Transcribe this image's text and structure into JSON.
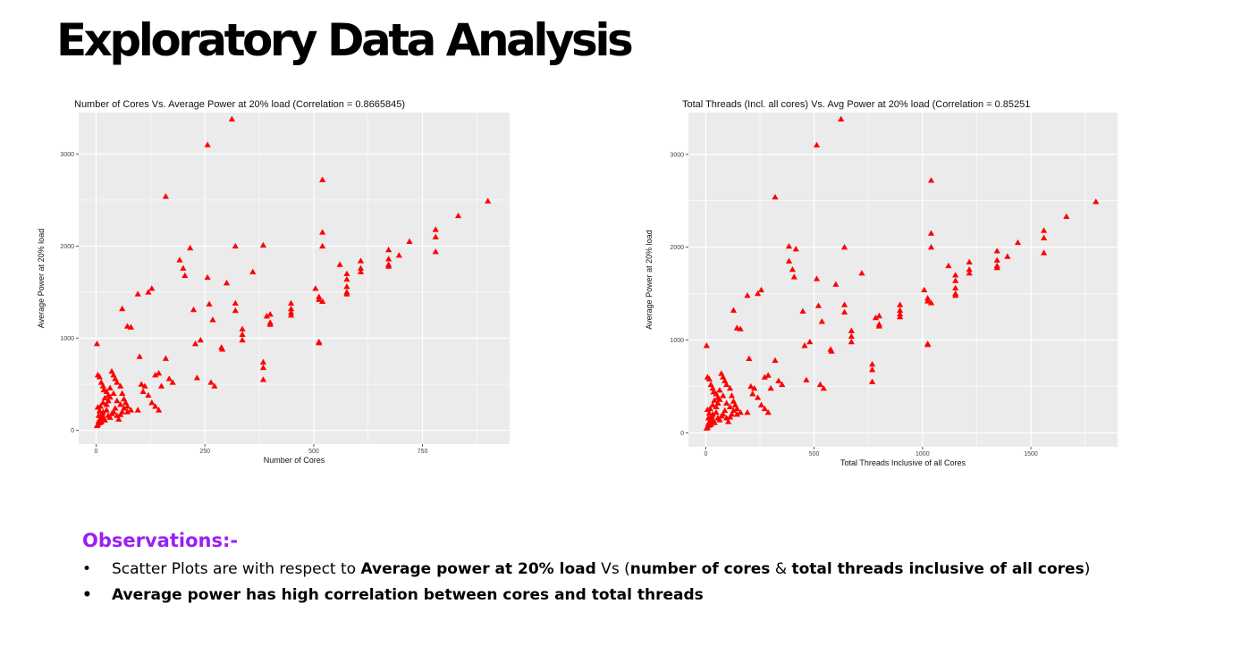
{
  "slide": {
    "title": "Exploratory Data Analysis"
  },
  "observations": {
    "heading": "Observations:-",
    "bullet_symbol": "•",
    "item1": {
      "t1": "Scatter Plots are with respect to ",
      "b1": "Average power at 20% load",
      "t2": " Vs (",
      "b2": "number of cores",
      "t3": " & ",
      "b3": "total threads inclusive of all cores",
      "t4": ")"
    },
    "item2": "Average power has high correlation between cores and total threads"
  },
  "colors": {
    "panel_background": "#ebebeb",
    "gridline": "#ffffff",
    "marker": "#ff0000",
    "observations_heading": "#9a1ff5"
  },
  "chart_data": [
    {
      "type": "scatter",
      "marker": "triangle",
      "title": "Number of Cores Vs. Average Power at 20% load (Correlation = 0.8665845)",
      "xlabel": "Number of Cores",
      "ylabel": "Average Power at 20% load",
      "xlim": [
        -40,
        950
      ],
      "ylim": [
        -150,
        3450
      ],
      "xticks": [
        0,
        250,
        500,
        750
      ],
      "xtick_labels": [
        "0",
        "250",
        "500",
        "750"
      ],
      "yticks": [
        0,
        1000,
        2000,
        3000
      ],
      "ytick_labels": [
        "0",
        "1000",
        "2000",
        "3000"
      ],
      "grid": true,
      "points": [
        [
          2,
          940
        ],
        [
          4,
          600
        ],
        [
          8,
          580
        ],
        [
          12,
          520
        ],
        [
          16,
          480
        ],
        [
          18,
          440
        ],
        [
          24,
          420
        ],
        [
          28,
          380
        ],
        [
          32,
          460
        ],
        [
          36,
          640
        ],
        [
          40,
          600
        ],
        [
          44,
          560
        ],
        [
          48,
          520
        ],
        [
          56,
          480
        ],
        [
          60,
          400
        ],
        [
          64,
          340
        ],
        [
          68,
          300
        ],
        [
          72,
          260
        ],
        [
          80,
          220
        ],
        [
          2,
          50
        ],
        [
          4,
          60
        ],
        [
          6,
          100
        ],
        [
          8,
          80
        ],
        [
          10,
          120
        ],
        [
          12,
          150
        ],
        [
          14,
          180
        ],
        [
          16,
          200
        ],
        [
          18,
          130
        ],
        [
          20,
          110
        ],
        [
          24,
          220
        ],
        [
          28,
          160
        ],
        [
          32,
          140
        ],
        [
          36,
          180
        ],
        [
          40,
          200
        ],
        [
          44,
          240
        ],
        [
          48,
          160
        ],
        [
          52,
          120
        ],
        [
          56,
          170
        ],
        [
          60,
          200
        ],
        [
          4,
          250
        ],
        [
          6,
          160
        ],
        [
          8,
          210
        ],
        [
          10,
          260
        ],
        [
          12,
          90
        ],
        [
          16,
          300
        ],
        [
          20,
          350
        ],
        [
          24,
          280
        ],
        [
          28,
          320
        ],
        [
          32,
          360
        ],
        [
          40,
          400
        ],
        [
          48,
          320
        ],
        [
          56,
          280
        ],
        [
          64,
          240
        ],
        [
          72,
          200
        ],
        [
          96,
          220
        ],
        [
          60,
          1320
        ],
        [
          72,
          1130
        ],
        [
          80,
          1120
        ],
        [
          96,
          1480
        ],
        [
          104,
          500
        ],
        [
          112,
          480
        ],
        [
          120,
          1500
        ],
        [
          128,
          1540
        ],
        [
          136,
          600
        ],
        [
          144,
          620
        ],
        [
          150,
          480
        ],
        [
          160,
          780
        ],
        [
          168,
          560
        ],
        [
          176,
          520
        ],
        [
          100,
          800
        ],
        [
          108,
          420
        ],
        [
          120,
          380
        ],
        [
          128,
          300
        ],
        [
          136,
          260
        ],
        [
          144,
          220
        ],
        [
          160,
          2540
        ],
        [
          192,
          1850
        ],
        [
          200,
          1760
        ],
        [
          204,
          1680
        ],
        [
          216,
          1980
        ],
        [
          224,
          1310
        ],
        [
          228,
          940
        ],
        [
          232,
          570
        ],
        [
          240,
          980
        ],
        [
          256,
          3100
        ],
        [
          256,
          1660
        ],
        [
          260,
          1370
        ],
        [
          264,
          520
        ],
        [
          268,
          1200
        ],
        [
          272,
          480
        ],
        [
          288,
          900
        ],
        [
          290,
          880
        ],
        [
          300,
          1600
        ],
        [
          312,
          3380
        ],
        [
          320,
          2000
        ],
        [
          320,
          1380
        ],
        [
          320,
          1300
        ],
        [
          336,
          1100
        ],
        [
          336,
          1040
        ],
        [
          336,
          980
        ],
        [
          360,
          1720
        ],
        [
          384,
          2010
        ],
        [
          384,
          740
        ],
        [
          384,
          680
        ],
        [
          384,
          550
        ],
        [
          392,
          1240
        ],
        [
          400,
          1260
        ],
        [
          400,
          1170
        ],
        [
          400,
          1150
        ],
        [
          448,
          1380
        ],
        [
          448,
          1320
        ],
        [
          448,
          1280
        ],
        [
          448,
          1250
        ],
        [
          504,
          1540
        ],
        [
          512,
          1450
        ],
        [
          512,
          1420
        ],
        [
          512,
          960
        ],
        [
          512,
          950
        ],
        [
          520,
          2720
        ],
        [
          520,
          2150
        ],
        [
          520,
          2000
        ],
        [
          520,
          1400
        ],
        [
          560,
          1800
        ],
        [
          576,
          1700
        ],
        [
          576,
          1640
        ],
        [
          576,
          1560
        ],
        [
          576,
          1500
        ],
        [
          576,
          1480
        ],
        [
          608,
          1840
        ],
        [
          608,
          1760
        ],
        [
          608,
          1720
        ],
        [
          672,
          1960
        ],
        [
          672,
          1860
        ],
        [
          672,
          1800
        ],
        [
          672,
          1780
        ],
        [
          696,
          1900
        ],
        [
          720,
          2050
        ],
        [
          780,
          2180
        ],
        [
          780,
          2100
        ],
        [
          780,
          1940
        ],
        [
          832,
          2330
        ],
        [
          900,
          2490
        ]
      ]
    },
    {
      "type": "scatter",
      "marker": "triangle",
      "title": "Total Threads (Incl. all cores) Vs. Avg Power at 20% load (Correlation = 0.85251",
      "xlabel": "Total Threads Inclusive of all Cores",
      "ylabel": "Average Power at 20% load",
      "xlim": [
        -80,
        1900
      ],
      "ylim": [
        -150,
        3450
      ],
      "xticks": [
        0,
        500,
        1000,
        1500
      ],
      "xtick_labels": [
        "0",
        "500",
        "1000",
        "1500"
      ],
      "yticks": [
        0,
        1000,
        2000,
        3000
      ],
      "ytick_labels": [
        "0",
        "1000",
        "2000",
        "3000"
      ],
      "grid": true,
      "points": [
        [
          4,
          940
        ],
        [
          8,
          600
        ],
        [
          16,
          580
        ],
        [
          24,
          520
        ],
        [
          32,
          480
        ],
        [
          36,
          440
        ],
        [
          48,
          420
        ],
        [
          56,
          380
        ],
        [
          64,
          460
        ],
        [
          72,
          640
        ],
        [
          80,
          600
        ],
        [
          88,
          560
        ],
        [
          96,
          520
        ],
        [
          112,
          480
        ],
        [
          120,
          400
        ],
        [
          128,
          340
        ],
        [
          136,
          300
        ],
        [
          144,
          260
        ],
        [
          160,
          220
        ],
        [
          4,
          50
        ],
        [
          8,
          60
        ],
        [
          12,
          100
        ],
        [
          16,
          80
        ],
        [
          20,
          120
        ],
        [
          24,
          150
        ],
        [
          28,
          180
        ],
        [
          32,
          200
        ],
        [
          36,
          130
        ],
        [
          40,
          110
        ],
        [
          48,
          220
        ],
        [
          56,
          160
        ],
        [
          64,
          140
        ],
        [
          72,
          180
        ],
        [
          80,
          200
        ],
        [
          88,
          240
        ],
        [
          96,
          160
        ],
        [
          104,
          120
        ],
        [
          112,
          170
        ],
        [
          120,
          200
        ],
        [
          8,
          250
        ],
        [
          12,
          160
        ],
        [
          16,
          210
        ],
        [
          20,
          260
        ],
        [
          24,
          90
        ],
        [
          32,
          300
        ],
        [
          40,
          350
        ],
        [
          48,
          280
        ],
        [
          56,
          320
        ],
        [
          64,
          360
        ],
        [
          80,
          400
        ],
        [
          96,
          320
        ],
        [
          112,
          280
        ],
        [
          128,
          240
        ],
        [
          144,
          200
        ],
        [
          192,
          220
        ],
        [
          128,
          1320
        ],
        [
          144,
          1130
        ],
        [
          160,
          1120
        ],
        [
          192,
          1480
        ],
        [
          208,
          500
        ],
        [
          224,
          480
        ],
        [
          240,
          1500
        ],
        [
          256,
          1540
        ],
        [
          272,
          600
        ],
        [
          288,
          620
        ],
        [
          300,
          480
        ],
        [
          320,
          780
        ],
        [
          336,
          560
        ],
        [
          352,
          520
        ],
        [
          200,
          800
        ],
        [
          216,
          420
        ],
        [
          240,
          380
        ],
        [
          256,
          300
        ],
        [
          272,
          260
        ],
        [
          288,
          220
        ],
        [
          320,
          2540
        ],
        [
          384,
          1850
        ],
        [
          400,
          1760
        ],
        [
          408,
          1680
        ],
        [
          384,
          2010
        ],
        [
          416,
          1980
        ],
        [
          448,
          1310
        ],
        [
          456,
          940
        ],
        [
          464,
          570
        ],
        [
          480,
          980
        ],
        [
          512,
          3100
        ],
        [
          512,
          1660
        ],
        [
          520,
          1370
        ],
        [
          528,
          520
        ],
        [
          536,
          1200
        ],
        [
          544,
          480
        ],
        [
          576,
          900
        ],
        [
          580,
          880
        ],
        [
          600,
          1600
        ],
        [
          624,
          3380
        ],
        [
          640,
          2000
        ],
        [
          640,
          1380
        ],
        [
          640,
          1300
        ],
        [
          672,
          1100
        ],
        [
          672,
          1040
        ],
        [
          672,
          980
        ],
        [
          720,
          1720
        ],
        [
          768,
          740
        ],
        [
          768,
          680
        ],
        [
          768,
          550
        ],
        [
          784,
          1240
        ],
        [
          800,
          1260
        ],
        [
          800,
          1170
        ],
        [
          800,
          1150
        ],
        [
          896,
          1380
        ],
        [
          896,
          1320
        ],
        [
          896,
          1280
        ],
        [
          896,
          1250
        ],
        [
          1008,
          1540
        ],
        [
          1024,
          1450
        ],
        [
          1024,
          1420
        ],
        [
          1024,
          960
        ],
        [
          1024,
          950
        ],
        [
          1040,
          2720
        ],
        [
          1040,
          2150
        ],
        [
          1040,
          2000
        ],
        [
          1040,
          1400
        ],
        [
          1120,
          1800
        ],
        [
          1152,
          1700
        ],
        [
          1152,
          1640
        ],
        [
          1152,
          1560
        ],
        [
          1152,
          1500
        ],
        [
          1152,
          1480
        ],
        [
          1216,
          1840
        ],
        [
          1216,
          1760
        ],
        [
          1216,
          1720
        ],
        [
          1344,
          1960
        ],
        [
          1344,
          1860
        ],
        [
          1344,
          1800
        ],
        [
          1344,
          1780
        ],
        [
          1392,
          1900
        ],
        [
          1440,
          2050
        ],
        [
          1560,
          2180
        ],
        [
          1560,
          2100
        ],
        [
          1560,
          1940
        ],
        [
          1664,
          2330
        ],
        [
          1800,
          2490
        ]
      ]
    }
  ]
}
